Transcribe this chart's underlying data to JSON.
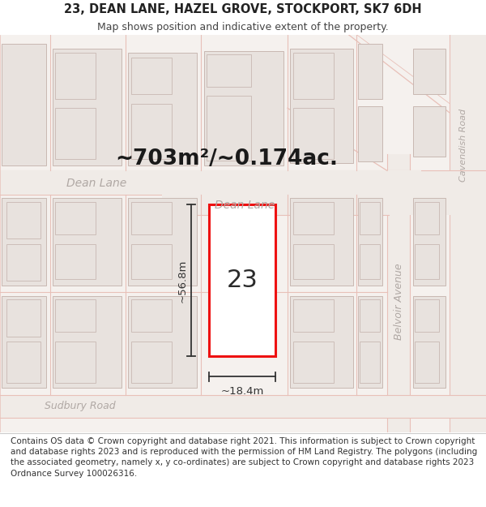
{
  "title": "23, DEAN LANE, HAZEL GROVE, STOCKPORT, SK7 6DH",
  "subtitle": "Map shows position and indicative extent of the property.",
  "area_label": "~703m²/~0.174ac.",
  "width_label": "~18.4m",
  "height_label": "~56.8m",
  "plot_number": "23",
  "map_bg": "#f5f1ee",
  "building_fill": "#e8e2de",
  "building_stroke": "#c8b8b2",
  "road_fill": "#f5f1ee",
  "road_line": "#e8c8c0",
  "highlight_stroke": "#ee1111",
  "highlight_fill": "#ffffff",
  "dim_line_color": "#333333",
  "label_gray": "#b0a8a4",
  "title_fontsize": 10.5,
  "subtitle_fontsize": 9,
  "area_fontsize": 19,
  "plot_number_fontsize": 22,
  "dim_fontsize": 9.5,
  "footer_fontsize": 7.5,
  "footer_text": "Contains OS data © Crown copyright and database right 2021. This information is subject to Crown copyright and database rights 2023 and is reproduced with the permission of HM Land Registry. The polygons (including the associated geometry, namely x, y co-ordinates) are subject to Crown copyright and database rights 2023 Ordnance Survey 100026316."
}
